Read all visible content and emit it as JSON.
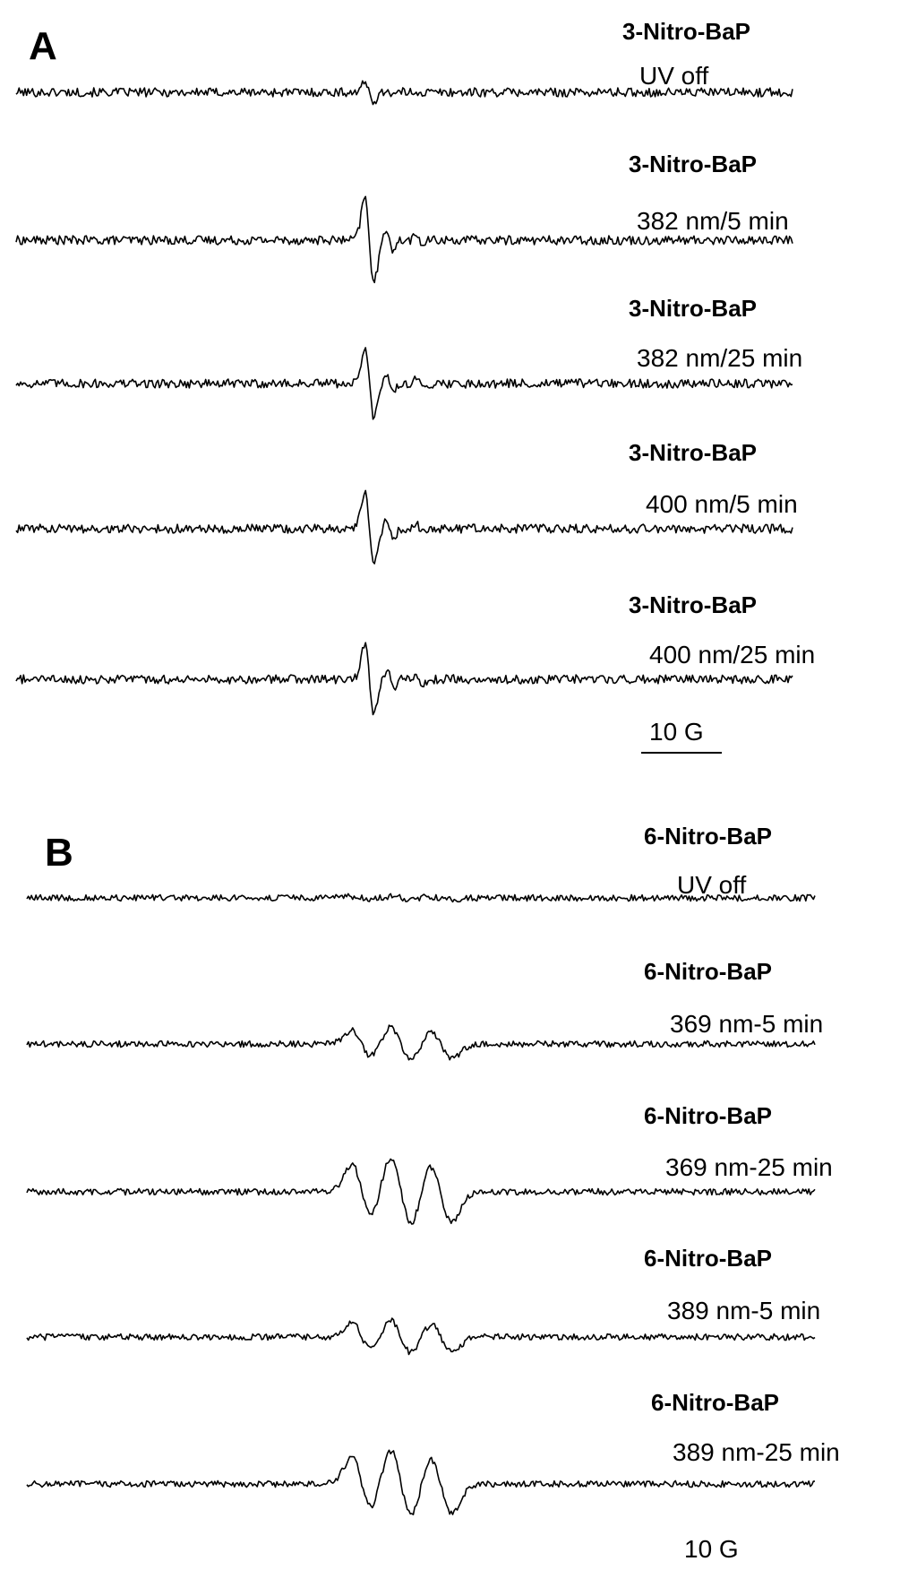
{
  "chart_data": [
    {
      "type": "line",
      "panel": "A",
      "scale_bar": {
        "label": "10 G",
        "length_gauss": 10
      },
      "series": [
        {
          "name": "3-Nitro-BaP",
          "condition": "UV off",
          "relative_amplitude": 0.2
        },
        {
          "name": "3-Nitro-BaP",
          "condition": "382 nm/5 min",
          "relative_amplitude": 1.0
        },
        {
          "name": "3-Nitro-BaP",
          "condition": "382 nm/25 min",
          "relative_amplitude": 0.8
        },
        {
          "name": "3-Nitro-BaP",
          "condition": "400 nm/5 min",
          "relative_amplitude": 0.85
        },
        {
          "name": "3-Nitro-BaP",
          "condition": "400 nm/25 min",
          "relative_amplitude": 0.8
        }
      ]
    },
    {
      "type": "line",
      "panel": "B",
      "scale_bar": {
        "label": "10 G",
        "length_gauss": 10
      },
      "series": [
        {
          "name": "6-Nitro-BaP",
          "condition": "UV off",
          "relative_amplitude": 0.05
        },
        {
          "name": "6-Nitro-BaP",
          "condition": "369 nm-5 min",
          "relative_amplitude": 0.5
        },
        {
          "name": "6-Nitro-BaP",
          "condition": "369 nm-25 min",
          "relative_amplitude": 1.0
        },
        {
          "name": "6-Nitro-BaP",
          "condition": "389 nm-5 min",
          "relative_amplitude": 0.5
        },
        {
          "name": "6-Nitro-BaP",
          "condition": "389 nm-25 min",
          "relative_amplitude": 1.0
        }
      ]
    }
  ]
}
